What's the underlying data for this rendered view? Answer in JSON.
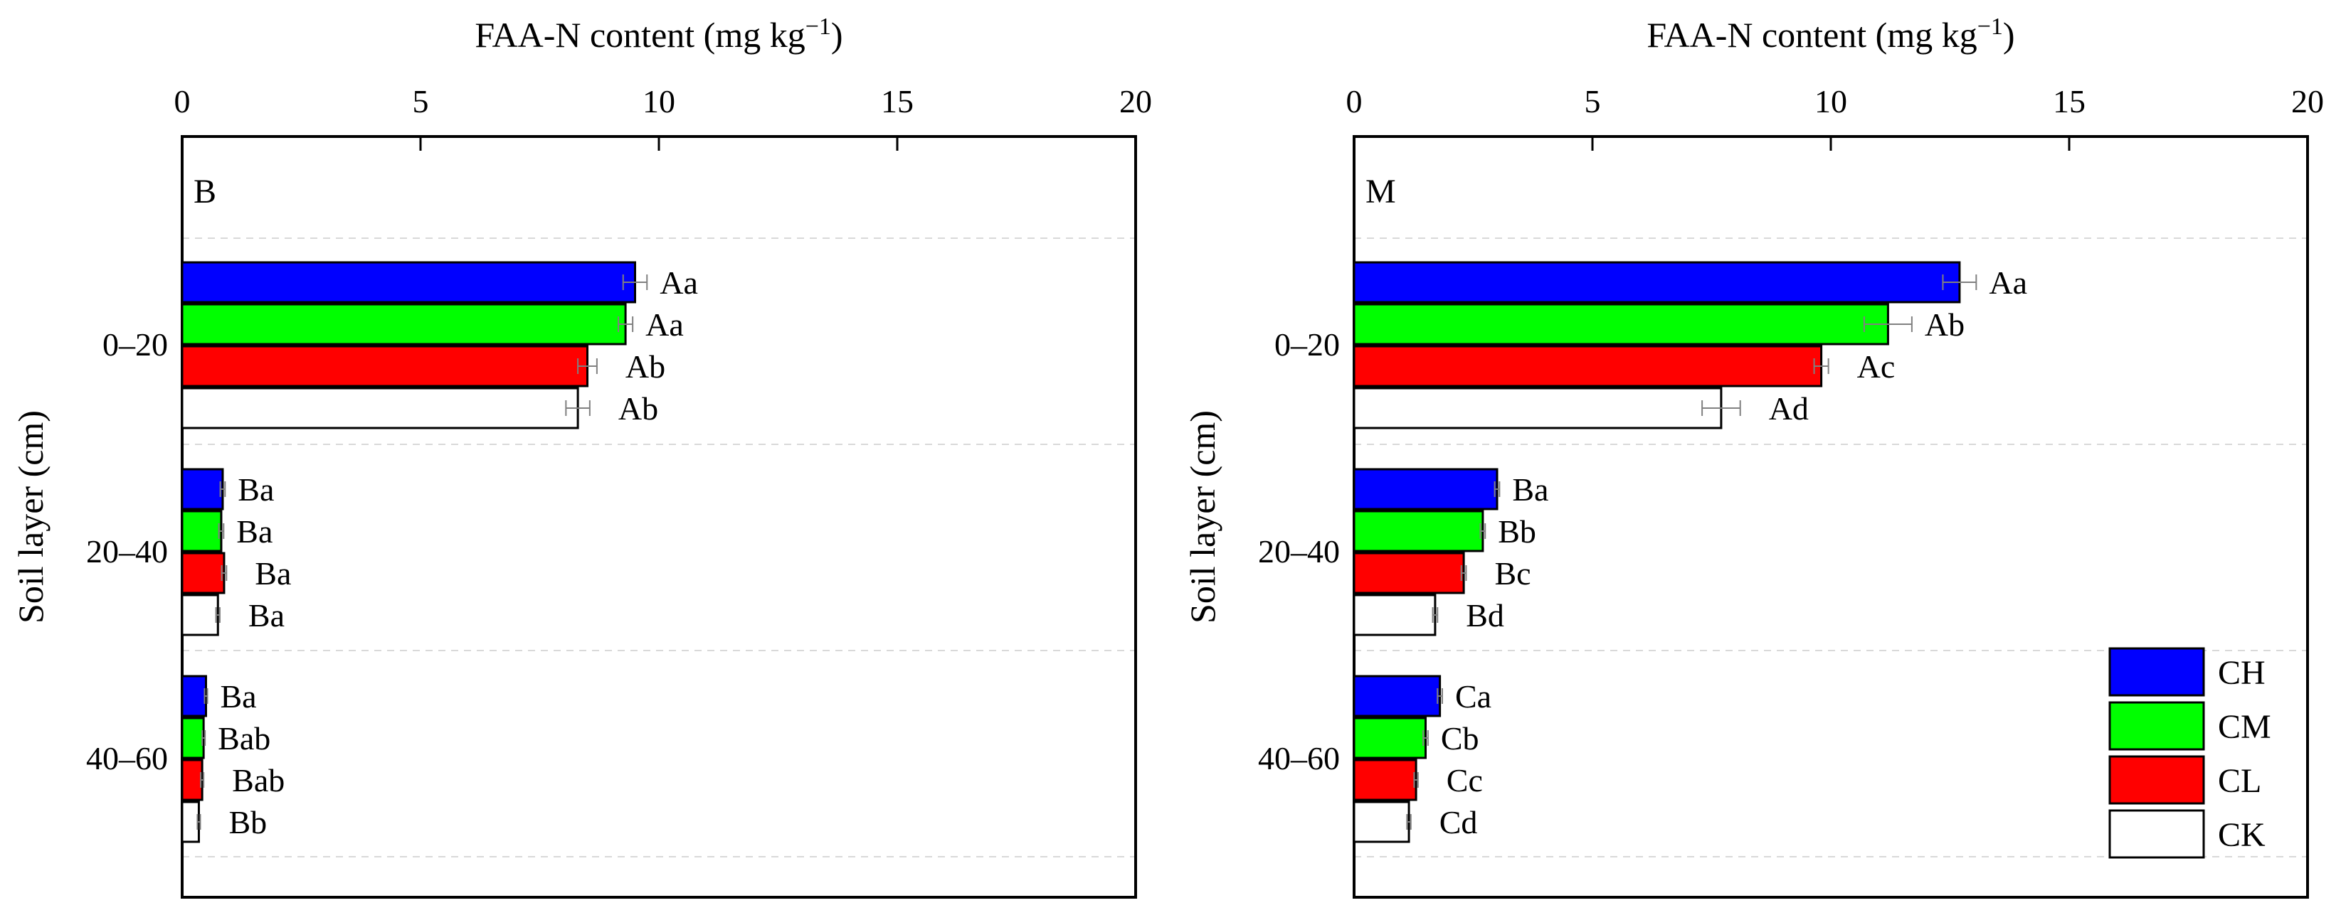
{
  "figure": {
    "x_axis_title_main": "FAA-N content (mg kg",
    "x_axis_title_sup": "−1",
    "x_axis_title_end": ")",
    "y_axis_title": "Soil layer (cm)"
  },
  "colors": {
    "CH": "#0000ff",
    "CM": "#00ff00",
    "CL": "#ff0000",
    "CK": "#ffffff",
    "outline": "#000000",
    "grid": "#d9d9d9",
    "error_bar": "#808080"
  },
  "legend": {
    "placement": "bottom-right of panel M",
    "entries": [
      "CH",
      "CM",
      "CL",
      "CK"
    ]
  },
  "chart_data": [
    {
      "type": "bar",
      "orientation": "horizontal",
      "panel_label": "B",
      "title": "",
      "xlabel": "FAA-N content (mg kg−1)",
      "ylabel": "Soil layer (cm)",
      "xlim": [
        0,
        20
      ],
      "xticks": [
        "0",
        "5",
        "10",
        "15",
        "20"
      ],
      "categories": [
        "0–20",
        "20–40",
        "40–60"
      ],
      "series": [
        {
          "name": "CH",
          "values": [
            9.5,
            0.85,
            0.5
          ],
          "errors": [
            0.25,
            0.05,
            0.03
          ],
          "labels": [
            "Aa",
            "Ba",
            "Ba"
          ]
        },
        {
          "name": "CM",
          "values": [
            9.3,
            0.82,
            0.45
          ],
          "errors": [
            0.15,
            0.05,
            0.03
          ],
          "labels": [
            "Aa",
            "Ba",
            "Bab"
          ]
        },
        {
          "name": "CL",
          "values": [
            8.5,
            0.88,
            0.42
          ],
          "errors": [
            0.2,
            0.05,
            0.03
          ],
          "labels": [
            "Ab",
            "Ba",
            "Bab"
          ]
        },
        {
          "name": "CK",
          "values": [
            8.3,
            0.75,
            0.35
          ],
          "errors": [
            0.25,
            0.04,
            0.03
          ],
          "labels": [
            "Ab",
            "Ba",
            "Bb"
          ]
        }
      ]
    },
    {
      "type": "bar",
      "orientation": "horizontal",
      "panel_label": "M",
      "title": "",
      "xlabel": "FAA-N content (mg kg−1)",
      "ylabel": "Soil layer (cm)",
      "xlim": [
        0,
        20
      ],
      "xticks": [
        "0",
        "5",
        "10",
        "15",
        "20"
      ],
      "categories": [
        "0–20",
        "20–40",
        "40–60"
      ],
      "series": [
        {
          "name": "CH",
          "values": [
            12.7,
            3.0,
            1.8
          ],
          "errors": [
            0.35,
            0.05,
            0.05
          ],
          "labels": [
            "Aa",
            "Ba",
            "Ca"
          ]
        },
        {
          "name": "CM",
          "values": [
            11.2,
            2.7,
            1.5
          ],
          "errors": [
            0.5,
            0.05,
            0.05
          ],
          "labels": [
            "Ab",
            "Bb",
            "Cb"
          ]
        },
        {
          "name": "CL",
          "values": [
            9.8,
            2.3,
            1.3
          ],
          "errors": [
            0.15,
            0.05,
            0.04
          ],
          "labels": [
            "Ac",
            "Bc",
            "Cc"
          ]
        },
        {
          "name": "CK",
          "values": [
            7.7,
            1.7,
            1.15
          ],
          "errors": [
            0.4,
            0.05,
            0.04
          ],
          "labels": [
            "Ad",
            "Bd",
            "Cd"
          ]
        }
      ]
    }
  ]
}
